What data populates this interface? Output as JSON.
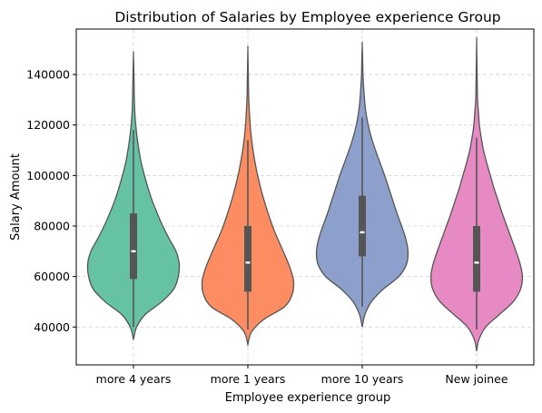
{
  "chart_data": {
    "type": "violin",
    "title": "Distribution of Salaries by Employee experience Group",
    "xlabel": "Employee experience group",
    "ylabel": "Salary Amount",
    "ylim": [
      25000,
      158000
    ],
    "yticks": [
      40000,
      60000,
      80000,
      100000,
      120000,
      140000
    ],
    "ytick_labels": [
      "40000",
      "60000",
      "80000",
      "100000",
      "120000",
      "140000"
    ],
    "grid": true,
    "outline_color": "#555555",
    "box_color": "#555555",
    "median_marker_color": "#ffffff",
    "categories": [
      "more 4 years",
      "more 1 years",
      "more 10 years",
      "New joinee"
    ],
    "violins": [
      {
        "category": "more 4 years",
        "color": "#66c2a5",
        "kde_min": 35000,
        "kde_max": 148000,
        "whisker_low": 40000,
        "whisker_high": 118000,
        "q1": 59000,
        "median": 70000,
        "q3": 85000,
        "profile_y": [
          35000,
          40000,
          45000,
          50000,
          55000,
          60000,
          65000,
          70000,
          75000,
          80000,
          85000,
          90000,
          95000,
          100000,
          105000,
          110000,
          115000,
          120000,
          125000,
          130000,
          135000,
          140000,
          148000
        ],
        "profile_w": [
          0.0,
          0.07,
          0.26,
          0.62,
          0.88,
          0.98,
          1.0,
          0.93,
          0.78,
          0.64,
          0.52,
          0.41,
          0.32,
          0.24,
          0.17,
          0.12,
          0.08,
          0.05,
          0.03,
          0.02,
          0.015,
          0.01,
          0.0
        ]
      },
      {
        "category": "more 1 years",
        "color": "#fc8d62",
        "kde_min": 33000,
        "kde_max": 150000,
        "whisker_low": 39000,
        "whisker_high": 114000,
        "q1": 54000,
        "median": 65500,
        "q3": 80000,
        "profile_y": [
          33000,
          38000,
          43000,
          48000,
          53000,
          58000,
          63000,
          68000,
          73000,
          78000,
          83000,
          88000,
          93000,
          98000,
          103000,
          108000,
          113000,
          118000,
          123000,
          128000,
          133000,
          140000,
          150000
        ],
        "profile_w": [
          0.0,
          0.08,
          0.35,
          0.8,
          0.97,
          1.0,
          0.93,
          0.82,
          0.7,
          0.58,
          0.48,
          0.39,
          0.31,
          0.24,
          0.18,
          0.13,
          0.09,
          0.06,
          0.04,
          0.025,
          0.015,
          0.01,
          0.0
        ]
      },
      {
        "category": "more 10 years",
        "color": "#8da0cb",
        "kde_min": 40000,
        "kde_max": 152000,
        "whisker_low": 48000,
        "whisker_high": 123000,
        "q1": 68000,
        "median": 77500,
        "q3": 92000,
        "profile_y": [
          40000,
          45000,
          50000,
          55000,
          60000,
          65000,
          70000,
          75000,
          80000,
          85000,
          90000,
          95000,
          100000,
          105000,
          110000,
          115000,
          120000,
          125000,
          130000,
          135000,
          140000,
          145000,
          152000
        ],
        "profile_w": [
          0.0,
          0.06,
          0.2,
          0.46,
          0.8,
          0.97,
          1.0,
          0.95,
          0.86,
          0.76,
          0.67,
          0.58,
          0.49,
          0.39,
          0.29,
          0.2,
          0.13,
          0.08,
          0.05,
          0.03,
          0.015,
          0.01,
          0.0
        ]
      },
      {
        "category": "New joinee",
        "color": "#e78ac3",
        "kde_min": 30500,
        "kde_max": 153000,
        "whisker_low": 39000,
        "whisker_high": 115000,
        "q1": 54000,
        "median": 65500,
        "q3": 80000,
        "profile_y": [
          30500,
          35000,
          40000,
          45000,
          50000,
          55000,
          60000,
          65000,
          70000,
          75000,
          80000,
          85000,
          90000,
          95000,
          100000,
          105000,
          110000,
          115000,
          120000,
          125000,
          130000,
          140000,
          153000
        ],
        "profile_w": [
          0.0,
          0.05,
          0.2,
          0.5,
          0.8,
          0.96,
          1.0,
          0.95,
          0.86,
          0.76,
          0.66,
          0.56,
          0.47,
          0.38,
          0.3,
          0.22,
          0.15,
          0.1,
          0.06,
          0.04,
          0.02,
          0.01,
          0.0
        ]
      }
    ]
  }
}
